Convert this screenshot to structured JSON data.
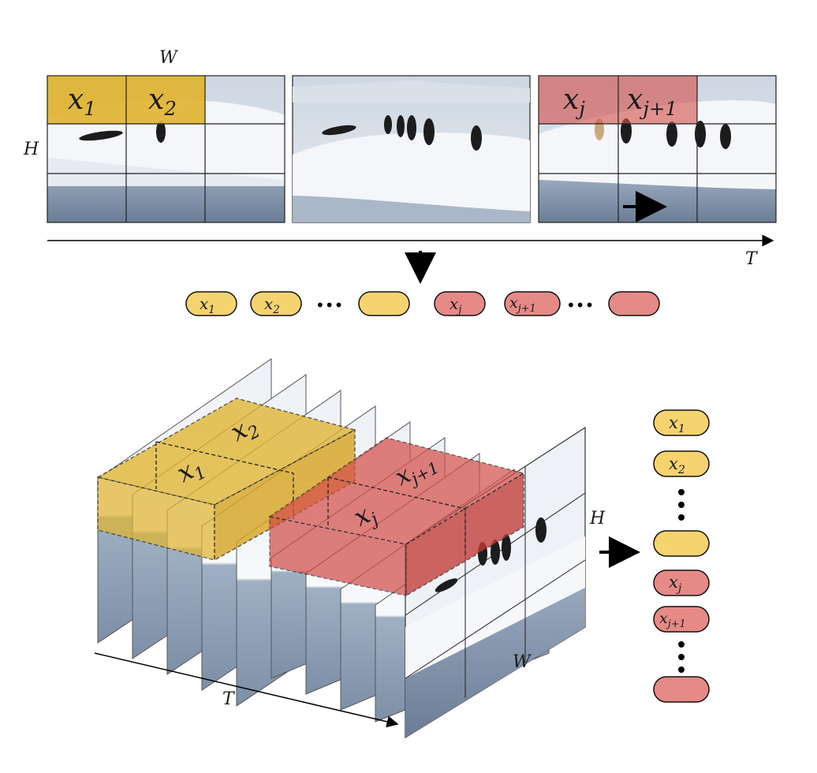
{
  "labels": {
    "top_w": "W",
    "top_h": "H",
    "top_t": "T",
    "bottom_h": "H",
    "bottom_w": "W",
    "bottom_t": "T"
  },
  "tokens": {
    "x1": {
      "base": "x",
      "sub": "1"
    },
    "x2": {
      "base": "x",
      "sub": "2"
    },
    "xj": {
      "base": "x",
      "sub": "j"
    },
    "xj1": {
      "base": "x",
      "sub": "j+1"
    }
  },
  "ellipsis": "•••",
  "colors": {
    "yellow_fill": "#f5d36e",
    "yellow_overlay": "#e0b431",
    "red_fill": "#e58a86",
    "red_overlay": "#d4504b",
    "ice_sky": "#c9d3e0",
    "ice_snow": "#f4f6f9",
    "water": "#8395ad",
    "penguin": "#1c1c1c"
  },
  "icons": {
    "down_arrow": "arrow-down-icon",
    "right_arrow": "arrow-right-icon",
    "motion_arrow": "motion-arrow-icon"
  }
}
